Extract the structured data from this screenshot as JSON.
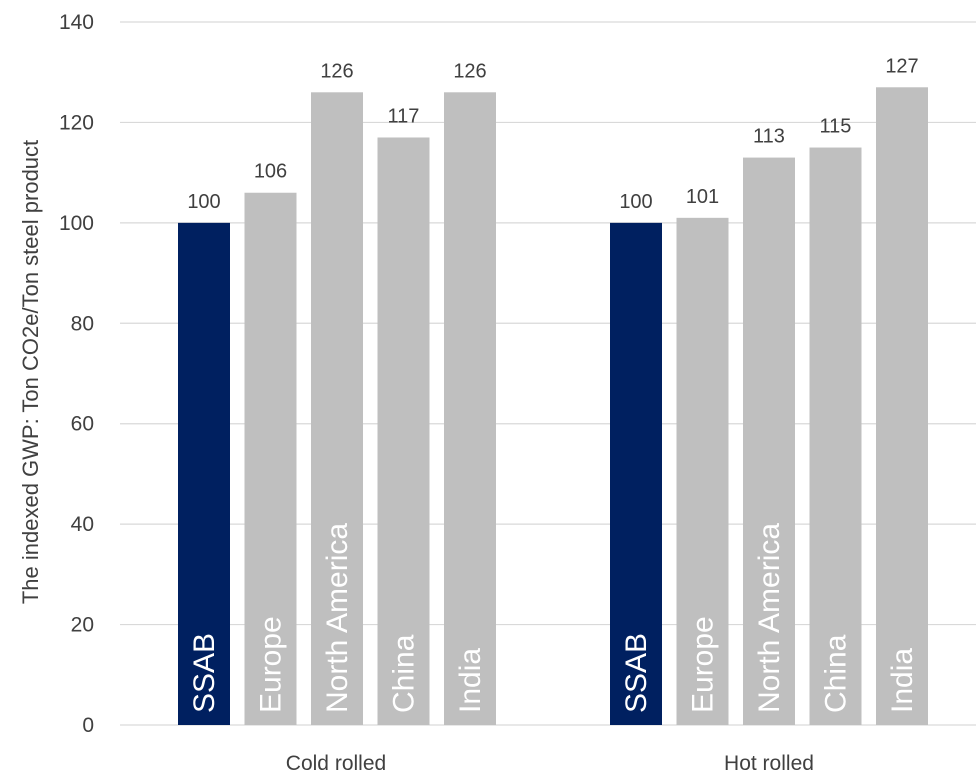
{
  "chart_data": {
    "type": "bar",
    "ylabel": "The indexed GWP: Ton CO2e/Ton steel product",
    "xlabel": "",
    "ylim": [
      0,
      140
    ],
    "yticks": [
      0,
      20,
      40,
      60,
      80,
      100,
      120,
      140
    ],
    "grid": true,
    "legend": "none",
    "groups": [
      {
        "label": "Cold rolled",
        "bars": [
          {
            "name": "SSAB",
            "value": 100,
            "color": "#002060"
          },
          {
            "name": "Europe",
            "value": 106,
            "color": "#BFBFBF"
          },
          {
            "name": "North America",
            "value": 126,
            "color": "#BFBFBF"
          },
          {
            "name": "China",
            "value": 117,
            "color": "#BFBFBF"
          },
          {
            "name": "India",
            "value": 126,
            "color": "#BFBFBF"
          }
        ]
      },
      {
        "label": "Hot rolled",
        "bars": [
          {
            "name": "SSAB",
            "value": 100,
            "color": "#002060"
          },
          {
            "name": "Europe",
            "value": 101,
            "color": "#BFBFBF"
          },
          {
            "name": "North America",
            "value": 113,
            "color": "#BFBFBF"
          },
          {
            "name": "China",
            "value": 115,
            "color": "#BFBFBF"
          },
          {
            "name": "India",
            "value": 127,
            "color": "#BFBFBF"
          }
        ]
      }
    ]
  }
}
